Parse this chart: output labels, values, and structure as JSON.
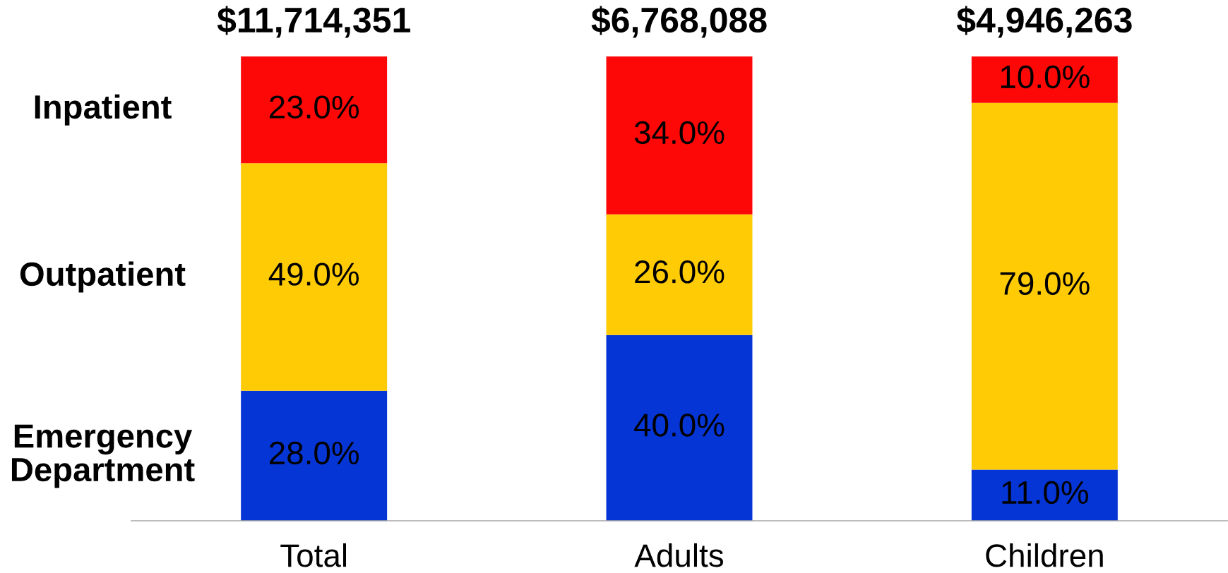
{
  "chart_data": {
    "type": "bar",
    "stacked": true,
    "categories": [
      "Total",
      "Adults",
      "Children"
    ],
    "series": [
      {
        "name": "Emergency\nDepartment",
        "color": "#0635d6",
        "values": [
          28.0,
          40.0,
          11.0
        ],
        "value_labels": [
          "28.0%",
          "40.0%",
          "11.0%"
        ]
      },
      {
        "name": "Outpatient",
        "color": "#ffcb05",
        "values": [
          49.0,
          26.0,
          79.0
        ],
        "value_labels": [
          "49.0%",
          "26.0%",
          "79.0%"
        ]
      },
      {
        "name": "Inpatient",
        "color": "#fe0707",
        "values": [
          23.0,
          34.0,
          10.0
        ],
        "value_labels": [
          "23.0%",
          "34.0%",
          "10.0%"
        ]
      }
    ],
    "annotations": [
      {
        "text": "$11,714,351",
        "x": "Total",
        "y": 100
      },
      {
        "text": "$6,768,088",
        "x": "Adults",
        "y": 100
      },
      {
        "text": "$4,946,263",
        "x": "Children",
        "y": 100
      }
    ]
  }
}
